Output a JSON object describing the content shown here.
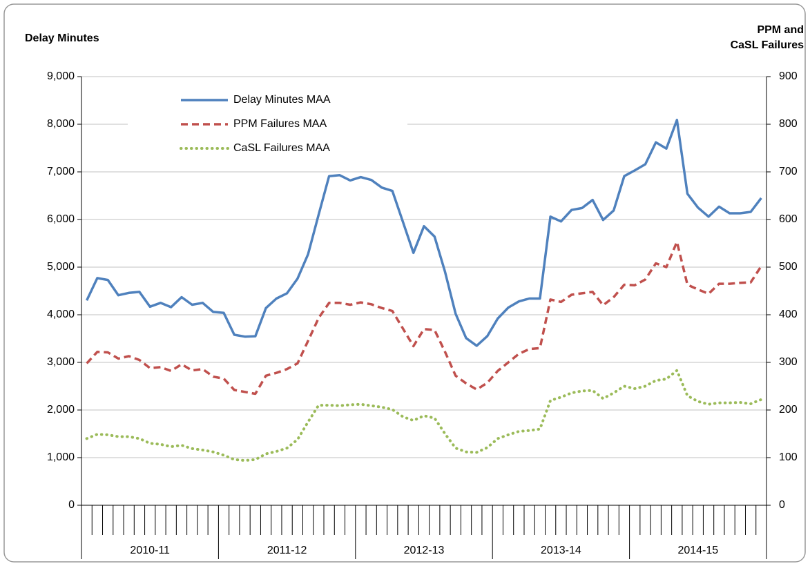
{
  "chart_data": {
    "type": "line",
    "y_label": "Delay Minutes",
    "y2_label": [
      "PPM and",
      "CaSL Failures"
    ],
    "categories": [
      null,
      null,
      null,
      null,
      null,
      null,
      null,
      null,
      null,
      null,
      null,
      null,
      null,
      null,
      null,
      null,
      null,
      null,
      null,
      null,
      null,
      null,
      null,
      null,
      null,
      null,
      null,
      null,
      null,
      null,
      null,
      null,
      null,
      null,
      null,
      null,
      null,
      null,
      null,
      null,
      null,
      null,
      null,
      null,
      null,
      null,
      null,
      null,
      null,
      null,
      null,
      null,
      null,
      null,
      null,
      null,
      null,
      null,
      null,
      null,
      null,
      null,
      null,
      null,
      null
    ],
    "category_groups": [
      "2010-11",
      "2011-12",
      "2012-13",
      "2013-14",
      "2014-15"
    ],
    "ylim": [
      0,
      9000
    ],
    "yticks": [
      0,
      {
        "value": 1000,
        "label": "1,000"
      },
      {
        "value": 2000,
        "label": "2,000"
      },
      {
        "value": 3000,
        "label": "3,000"
      },
      {
        "value": 4000,
        "label": "4,000"
      },
      {
        "value": 5000,
        "label": "5,000"
      },
      {
        "value": 6000,
        "label": "6,000"
      },
      {
        "value": 7000,
        "label": "7,000"
      },
      {
        "value": 8000,
        "label": "8,000"
      },
      {
        "value": 9000,
        "label": "9,000"
      }
    ],
    "y2lim": [
      0,
      900
    ],
    "y2ticks": [
      0,
      100,
      200,
      300,
      400,
      500,
      600,
      700,
      800,
      900
    ],
    "grid": true,
    "legend": "top-left",
    "series": [
      {
        "name": "Delay Minutes MAA",
        "color": "#4f81bd",
        "style": "solid",
        "values": [
          4300,
          4770,
          4730,
          4410,
          4460,
          4480,
          4170,
          4250,
          4160,
          4370,
          4210,
          4250,
          4060,
          4040,
          3580,
          3540,
          3550,
          4140,
          4340,
          4450,
          4760,
          5270,
          6100,
          6910,
          6930,
          6820,
          6890,
          6830,
          6670,
          6600,
          5950,
          5300,
          5860,
          5640,
          4900,
          4020,
          3510,
          3350,
          3550,
          3920,
          4150,
          4280,
          4340,
          4340,
          6060,
          5960,
          6200,
          6240,
          6410,
          5990,
          6190,
          6910,
          7030,
          7160,
          7620,
          7490,
          8090,
          6540,
          6250,
          6060,
          6270,
          6130,
          6130,
          6160,
          6450
        ]
      },
      {
        "name": "PPM Failures MAA",
        "color": "#c0504d",
        "style": "dashed",
        "axis": "y2",
        "values": [
          298,
          322,
          321,
          308,
          313,
          305,
          288,
          290,
          282,
          296,
          283,
          286,
          270,
          266,
          242,
          238,
          234,
          272,
          278,
          286,
          298,
          345,
          393,
          425,
          425,
          421,
          426,
          422,
          414,
          408,
          371,
          334,
          370,
          368,
          322,
          272,
          256,
          243,
          257,
          282,
          300,
          318,
          328,
          330,
          432,
          427,
          442,
          445,
          448,
          420,
          437,
          463,
          462,
          474,
          508,
          500,
          553,
          463,
          453,
          444,
          465,
          465,
          467,
          468,
          502
        ]
      },
      {
        "name": "CaSL Failures MAA",
        "color": "#9bbb59",
        "style": "dotted",
        "axis": "y2",
        "values": [
          140,
          149,
          148,
          144,
          144,
          140,
          130,
          128,
          123,
          126,
          119,
          116,
          112,
          105,
          96,
          94,
          96,
          108,
          113,
          120,
          138,
          175,
          210,
          210,
          209,
          211,
          212,
          209,
          206,
          201,
          186,
          178,
          188,
          183,
          150,
          120,
          112,
          111,
          121,
          140,
          148,
          155,
          157,
          160,
          220,
          227,
          236,
          240,
          241,
          224,
          236,
          250,
          245,
          250,
          262,
          265,
          283,
          230,
          218,
          212,
          215,
          215,
          216,
          213,
          222
        ]
      }
    ]
  }
}
